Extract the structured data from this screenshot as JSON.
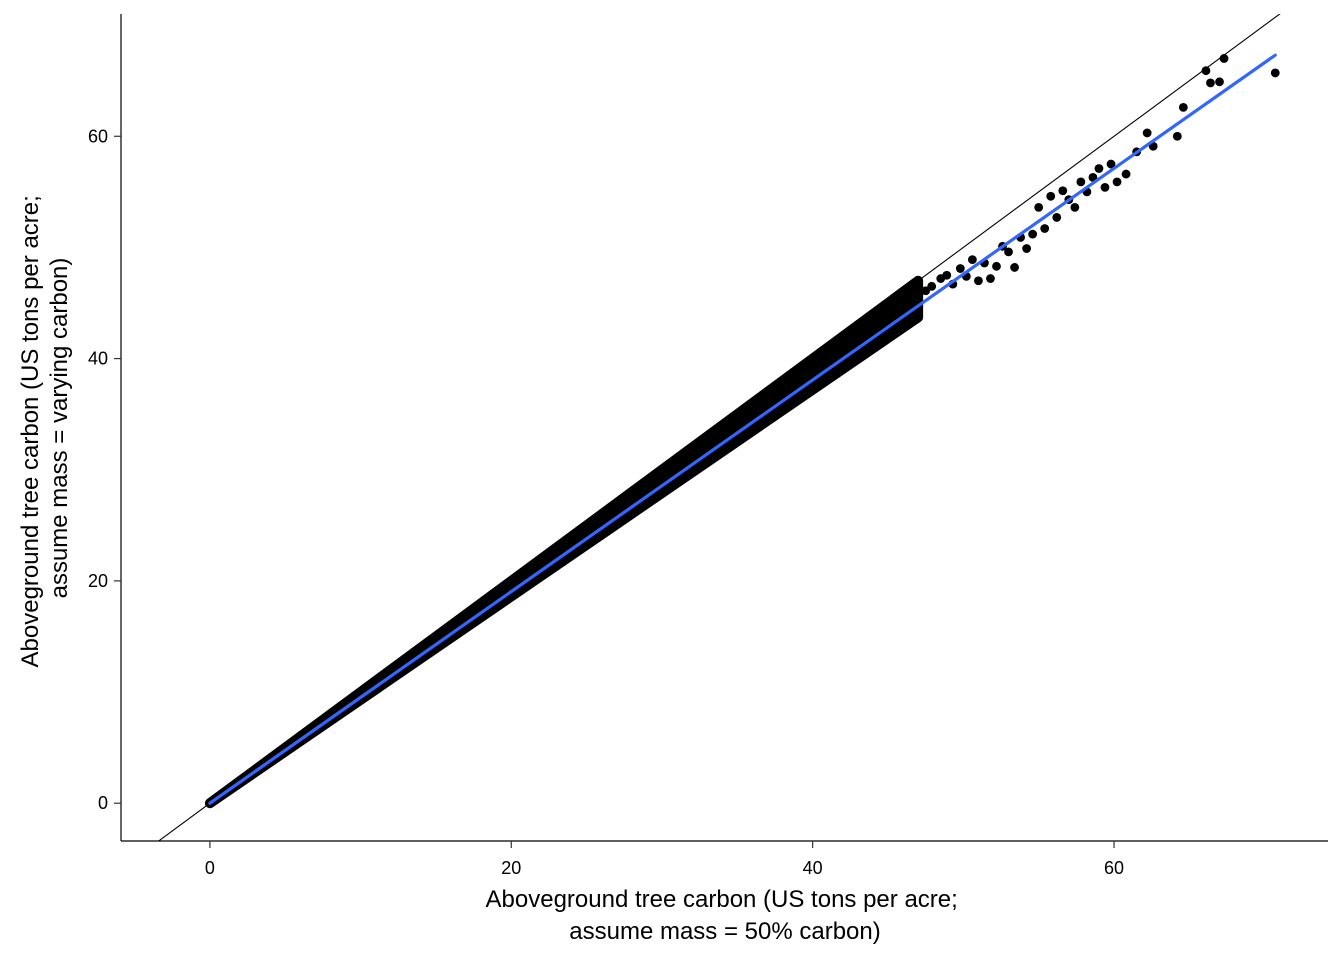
{
  "chart_data": {
    "type": "scatter",
    "title": "",
    "xlabel": [
      "Aboveground tree carbon (US tons per acre;",
      "assume mass = 50% carbon)"
    ],
    "ylabel": [
      "Aboveground tree carbon (US tons per acre;",
      "assume mass = varying carbon)"
    ],
    "xlim": [
      -5.9,
      74.2
    ],
    "ylim": [
      -3.4,
      71.0
    ],
    "xticks": [
      0,
      20,
      40,
      60
    ],
    "yticks": [
      0,
      20,
      40,
      60
    ],
    "xtick_labels": [
      "0",
      "20",
      "40",
      "60"
    ],
    "ytick_labels": [
      "0",
      "20",
      "40",
      "60"
    ],
    "grid": false,
    "legend": "none",
    "reference_line": {
      "name": "1:1 line",
      "slope": 1,
      "intercept": 0,
      "color": "#000000"
    },
    "fit_line": {
      "name": "linear fit",
      "x": [
        0,
        70.7
      ],
      "y": [
        0,
        67.3
      ],
      "color": "#3366FF"
    },
    "point_color": "#000000",
    "dense_band": {
      "x_range": [
        0,
        47
      ],
      "slope_low": 0.93,
      "slope_high": 1.0
    },
    "outlier_points": [
      [
        45.0,
        43.6
      ],
      [
        45.5,
        44.3
      ],
      [
        46.2,
        44.9
      ],
      [
        46.8,
        45.3
      ],
      [
        47.5,
        46.1
      ],
      [
        47.9,
        46.5
      ],
      [
        48.5,
        47.2
      ],
      [
        48.9,
        47.5
      ],
      [
        49.3,
        46.7
      ],
      [
        49.8,
        48.1
      ],
      [
        50.2,
        47.4
      ],
      [
        50.6,
        48.9
      ],
      [
        51.0,
        47.0
      ],
      [
        51.4,
        48.6
      ],
      [
        51.8,
        47.2
      ],
      [
        52.2,
        48.3
      ],
      [
        52.6,
        50.1
      ],
      [
        53.0,
        49.6
      ],
      [
        53.4,
        48.2
      ],
      [
        53.8,
        50.9
      ],
      [
        54.2,
        49.9
      ],
      [
        54.6,
        51.2
      ],
      [
        55.0,
        53.6
      ],
      [
        55.4,
        51.7
      ],
      [
        55.8,
        54.6
      ],
      [
        56.2,
        52.7
      ],
      [
        56.6,
        55.1
      ],
      [
        57.0,
        54.3
      ],
      [
        57.4,
        53.6
      ],
      [
        57.8,
        55.9
      ],
      [
        58.2,
        55.0
      ],
      [
        58.6,
        56.3
      ],
      [
        59.0,
        57.1
      ],
      [
        59.4,
        55.4
      ],
      [
        59.8,
        57.5
      ],
      [
        60.2,
        55.9
      ],
      [
        60.8,
        56.6
      ],
      [
        61.5,
        58.6
      ],
      [
        62.2,
        60.3
      ],
      [
        62.6,
        59.1
      ],
      [
        64.2,
        60.0
      ],
      [
        64.6,
        62.6
      ],
      [
        66.1,
        65.9
      ],
      [
        66.4,
        64.8
      ],
      [
        67.0,
        64.9
      ],
      [
        67.3,
        67.0
      ],
      [
        70.7,
        65.7
      ]
    ]
  }
}
